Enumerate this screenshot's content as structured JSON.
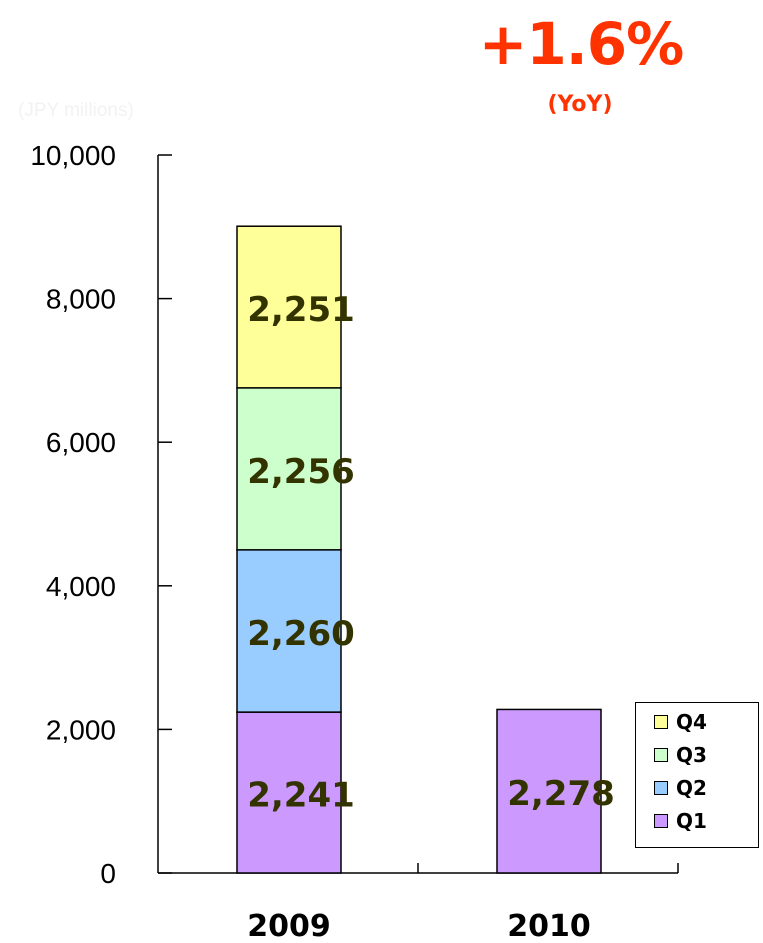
{
  "yoy": {
    "value": "+1.6%",
    "label": "(YoY)"
  },
  "unit_label": "(JPY millions)",
  "chart_data": {
    "type": "bar",
    "stacked": true,
    "categories": [
      "2009",
      "2010"
    ],
    "series": [
      {
        "name": "Q1",
        "values": [
          2241,
          2278
        ],
        "color": "#cc99ff",
        "labels": [
          "2,241",
          "2,278"
        ]
      },
      {
        "name": "Q2",
        "values": [
          2260,
          null
        ],
        "color": "#99ccff",
        "labels": [
          "2,260",
          ""
        ]
      },
      {
        "name": "Q3",
        "values": [
          2256,
          null
        ],
        "color": "#ccffcc",
        "labels": [
          "2,256",
          ""
        ]
      },
      {
        "name": "Q4",
        "values": [
          2251,
          null
        ],
        "color": "#ffff99",
        "labels": [
          "2,251",
          ""
        ]
      }
    ],
    "ylim": [
      0,
      10000
    ],
    "yticks": [
      0,
      2000,
      4000,
      6000,
      8000,
      10000
    ],
    "ytick_labels": [
      "0",
      "2,000",
      "4,000",
      "6,000",
      "8,000",
      "10,000"
    ],
    "legend_order": [
      "Q4",
      "Q3",
      "Q2",
      "Q1"
    ],
    "legend_position": "right",
    "grid": false,
    "data_label_color": "#333300"
  }
}
